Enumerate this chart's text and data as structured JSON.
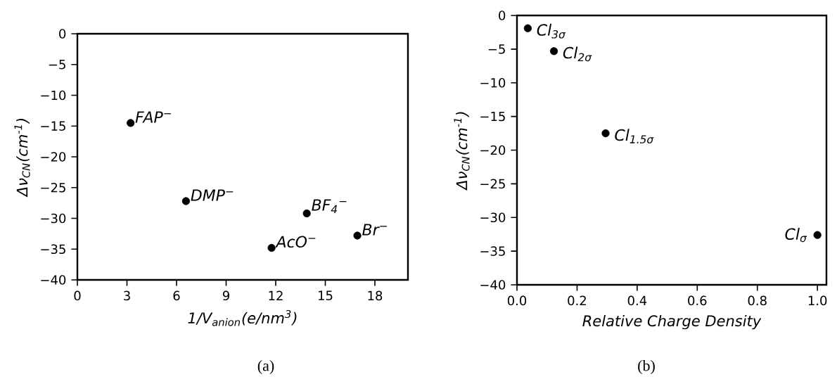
{
  "chart_data": [
    {
      "type": "scatter",
      "xlabel": "1/V$_{anion}$(e/nm$^{3}$)",
      "ylabel": "Δν$_{CN}$(cm$^{-1}$)",
      "marker": "circle",
      "x": [
        3.22,
        6.57,
        11.75,
        13.88,
        16.94
      ],
      "series": [
        {
          "color": "#000000",
          "values": [
            -14.5,
            -27.2,
            -34.8,
            -29.2,
            -32.8
          ]
        }
      ],
      "xlim": [
        0,
        20
      ],
      "ylim": [
        -40,
        0
      ],
      "xticks": [
        0,
        3,
        6,
        9,
        12,
        15,
        18
      ],
      "yticks": [
        {
          "value": -40,
          "label": "−40"
        },
        {
          "value": -35,
          "label": "−35"
        },
        {
          "value": -30,
          "label": "−30"
        },
        {
          "value": -25,
          "label": "−25"
        },
        {
          "value": -20,
          "label": "−20"
        },
        {
          "value": -15,
          "label": "−15"
        },
        {
          "value": -10,
          "label": "−10"
        },
        {
          "value": -5,
          "label": "−5"
        },
        0
      ],
      "annotations": [
        {
          "text": "FAP$^{−}$",
          "x": 3.22,
          "y": -14.5
        },
        {
          "text": "DMP$^{−}$",
          "x": 6.57,
          "y": -27.2
        },
        {
          "text": "AcO$^{−}$",
          "x": 11.75,
          "y": -34.8
        },
        {
          "text": "BF$_{4}$$^{−}$",
          "x": 13.88,
          "y": -29.2
        },
        {
          "text": "Br$^{−}$",
          "x": 16.94,
          "y": -32.8
        },
        "(a)"
      ]
    },
    {
      "type": "scatter",
      "xlabel": "Relative Charge Density",
      "ylabel": "Δν$_{CN}$(cm$^{-1}$)",
      "marker": "circle",
      "x": [
        0.036,
        0.123,
        0.295,
        1.0
      ],
      "series": [
        {
          "color": "#000000",
          "values": [
            -1.9,
            -5.3,
            -17.5,
            -32.6
          ]
        }
      ],
      "xlim": [
        0,
        1.03
      ],
      "ylim": [
        -40,
        0
      ],
      "xticks": [
        {
          "value": 0,
          "label": "0.0"
        },
        {
          "value": 0.2,
          "label": "0.2"
        },
        {
          "value": 0.4,
          "label": "0.4"
        },
        {
          "value": 0.6,
          "label": "0.6"
        },
        {
          "value": 0.8,
          "label": "0.8"
        },
        {
          "value": 1.0,
          "label": "1.0"
        }
      ],
      "yticks": [
        {
          "value": -40,
          "label": "−40"
        },
        {
          "value": -35,
          "label": "−35"
        },
        {
          "value": -30,
          "label": "−30"
        },
        {
          "value": -25,
          "label": "−25"
        },
        {
          "value": -20,
          "label": "−20"
        },
        {
          "value": -15,
          "label": "−15"
        },
        {
          "value": -10,
          "label": "−10"
        },
        {
          "value": -5,
          "label": "−5"
        },
        0
      ],
      "annotations": [
        {
          "text": "Cl$_{3σ}$",
          "x": 0.036,
          "y": -1.9
        },
        {
          "text": "Cl$_{2σ}$",
          "x": 0.123,
          "y": -5.3
        },
        {
          "text": "Cl$_{1.5σ}$",
          "x": 0.295,
          "y": -17.5
        },
        {
          "text": "Cl$_{σ}$",
          "x": 1.0,
          "y": -32.6
        },
        "(b)"
      ]
    }
  ]
}
